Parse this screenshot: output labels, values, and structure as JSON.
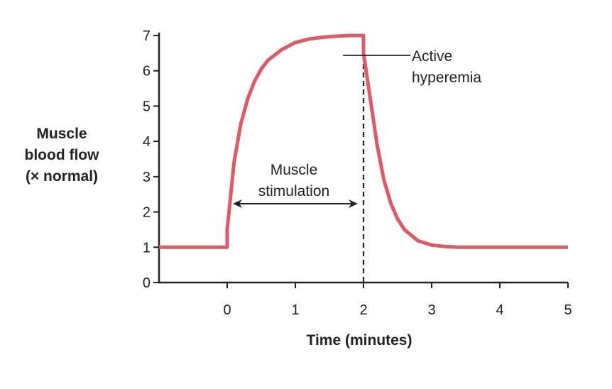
{
  "chart_data": {
    "type": "line",
    "xlabel": "Time (minutes)",
    "ylabel_lines": [
      "Muscle",
      "blood flow",
      "(× normal)"
    ],
    "x_ticks": [
      "0",
      "1",
      "2",
      "3",
      "4",
      "5"
    ],
    "y_ticks": [
      "0",
      "1",
      "2",
      "3",
      "4",
      "5",
      "6",
      "7"
    ],
    "xlim": [
      -1,
      5
    ],
    "ylim": [
      0,
      7
    ],
    "series": [
      {
        "color": "#e05a66",
        "x": [
          -1,
          0,
          0,
          0.1,
          0.2,
          0.3,
          0.4,
          0.5,
          0.6,
          0.8,
          1.0,
          1.2,
          1.4,
          1.6,
          1.8,
          2.0,
          2.0,
          2.1,
          2.2,
          2.3,
          2.4,
          2.5,
          2.6,
          2.8,
          3.0,
          3.2,
          3.4,
          4.0,
          5.0
        ],
        "y": [
          1,
          1,
          1.5,
          3.4,
          4.5,
          5.2,
          5.7,
          6.05,
          6.3,
          6.6,
          6.8,
          6.9,
          6.95,
          6.98,
          7.0,
          7.0,
          6.5,
          5.2,
          3.9,
          2.9,
          2.25,
          1.8,
          1.5,
          1.18,
          1.06,
          1.02,
          1.0,
          1.0,
          1.0
        ]
      }
    ],
    "annotations": {
      "stimulation_lines": [
        "Muscle",
        "stimulation"
      ],
      "hyperemia_lines": [
        "Active",
        "hyperemia"
      ],
      "stimulation_range": [
        0,
        2
      ],
      "dashed_line_x": 2
    }
  }
}
